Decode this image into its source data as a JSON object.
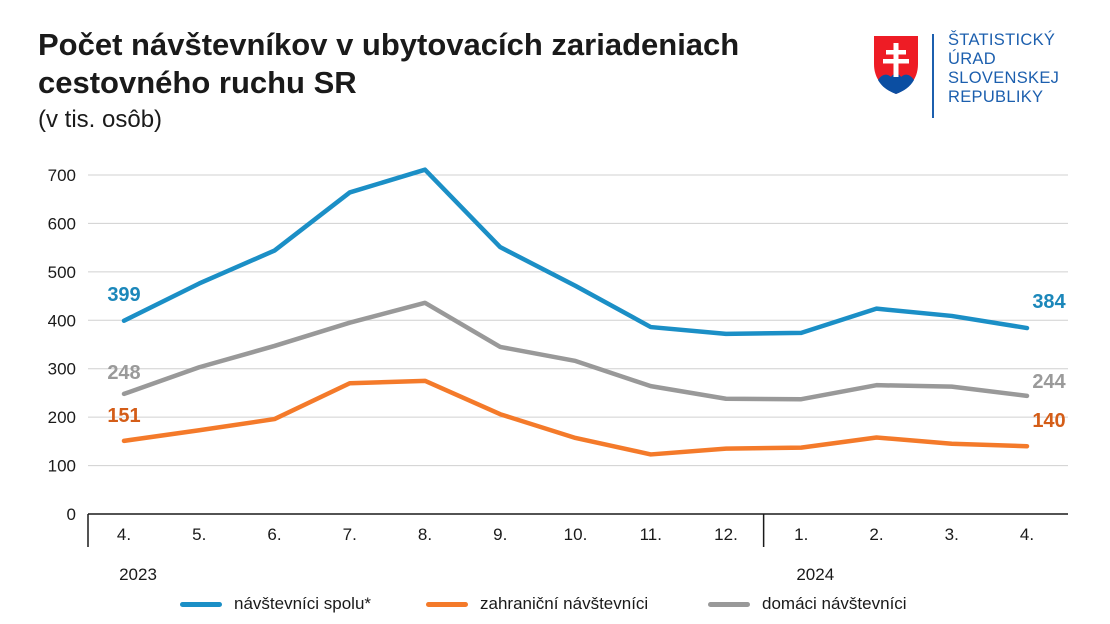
{
  "title": "Počet návštevníkov v ubytovacích zariadeniach cestovného ruchu SR",
  "subtitle": "(v tis. osôb)",
  "logo": {
    "lines": [
      "ŠTATISTICKÝ",
      "ÚRAD",
      "SLOVENSKEJ",
      "REPUBLIKY"
    ],
    "text_color": "#1c5fae",
    "emblem": "slovak-coat-of-arms-icon"
  },
  "chart_data": {
    "type": "line",
    "categories": [
      "4.",
      "5.",
      "6.",
      "7.",
      "8.",
      "9.",
      "10.",
      "11.",
      "12.",
      "1.",
      "2.",
      "3.",
      "4."
    ],
    "year_labels": [
      {
        "label": "2023",
        "category_index": 0
      },
      {
        "label": "2024",
        "category_index": 9
      }
    ],
    "ylim": [
      0,
      700
    ],
    "yticks": [
      0,
      100,
      200,
      300,
      400,
      500,
      600,
      700
    ],
    "grid": true,
    "legend_position": "bottom",
    "series": [
      {
        "name": "návštevníci spolu*",
        "color": "#1b8fc6",
        "label_color": "#1b87ba",
        "values": [
          399,
          476,
          544,
          664,
          711,
          551,
          471,
          386,
          372,
          374,
          424,
          409,
          384
        ],
        "first_label": "399",
        "last_label": "384"
      },
      {
        "name": "zahraniční návštevníci",
        "color": "#f47a2a",
        "label_color": "#d45d18",
        "values": [
          151,
          173,
          196,
          270,
          275,
          206,
          157,
          123,
          135,
          137,
          158,
          145,
          140
        ],
        "first_label": "151",
        "last_label": "140"
      },
      {
        "name": "domáci návštevníci",
        "color": "#999999",
        "label_color": "#9a9a9a",
        "values": [
          248,
          303,
          347,
          395,
          436,
          345,
          316,
          264,
          238,
          237,
          266,
          263,
          244
        ],
        "first_label": "248",
        "last_label": "244"
      }
    ]
  }
}
